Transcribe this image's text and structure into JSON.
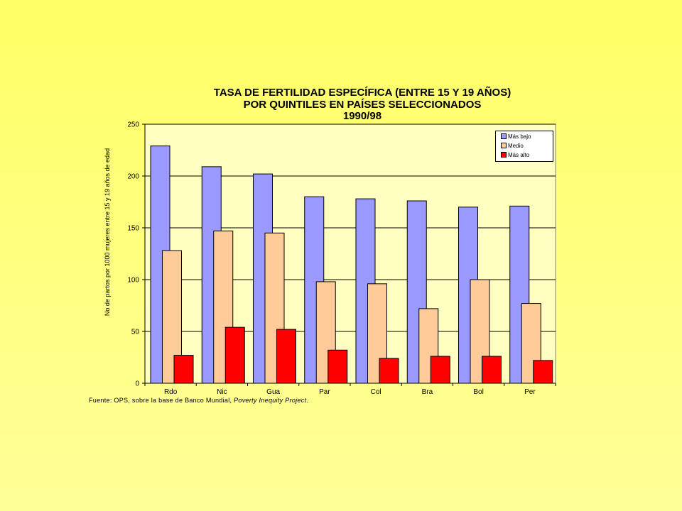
{
  "chart_data": {
    "type": "bar",
    "title_lines": [
      "TASA DE FERTILIDAD ESPECÍFICA (ENTRE 15 Y 19 AÑOS)",
      "POR QUINTILES EN PAÍSES SELECCIONADOS",
      "1990/98"
    ],
    "xlabel": "",
    "ylabel": "No de partos por 1000 mujeres entre 15 y 19 años de edad",
    "categories": [
      "Rdo",
      "Nic",
      "Gua",
      "Par",
      "Col",
      "Bra",
      "Bol",
      "Per"
    ],
    "ylim": [
      0,
      250
    ],
    "yticks": [
      0,
      50,
      100,
      150,
      200,
      250
    ],
    "grid": true,
    "legend_position": "top-right",
    "plot_background": "#ffffc0",
    "series": [
      {
        "name": "Más bajo",
        "color": "#9999ff",
        "values": [
          229,
          209,
          202,
          180,
          178,
          176,
          170,
          171
        ]
      },
      {
        "name": "Medio",
        "color": "#ffcc99",
        "values": [
          128,
          147,
          145,
          98,
          96,
          72,
          100,
          77
        ]
      },
      {
        "name": "Más alto",
        "color": "#ff0000",
        "values": [
          27,
          54,
          52,
          32,
          24,
          26,
          26,
          22
        ]
      }
    ]
  },
  "source": {
    "prefix": "Fuente: OPS, sobre la base de Banco Mundial, ",
    "italic": "Poverty Inequity Project",
    "suffix": "."
  }
}
